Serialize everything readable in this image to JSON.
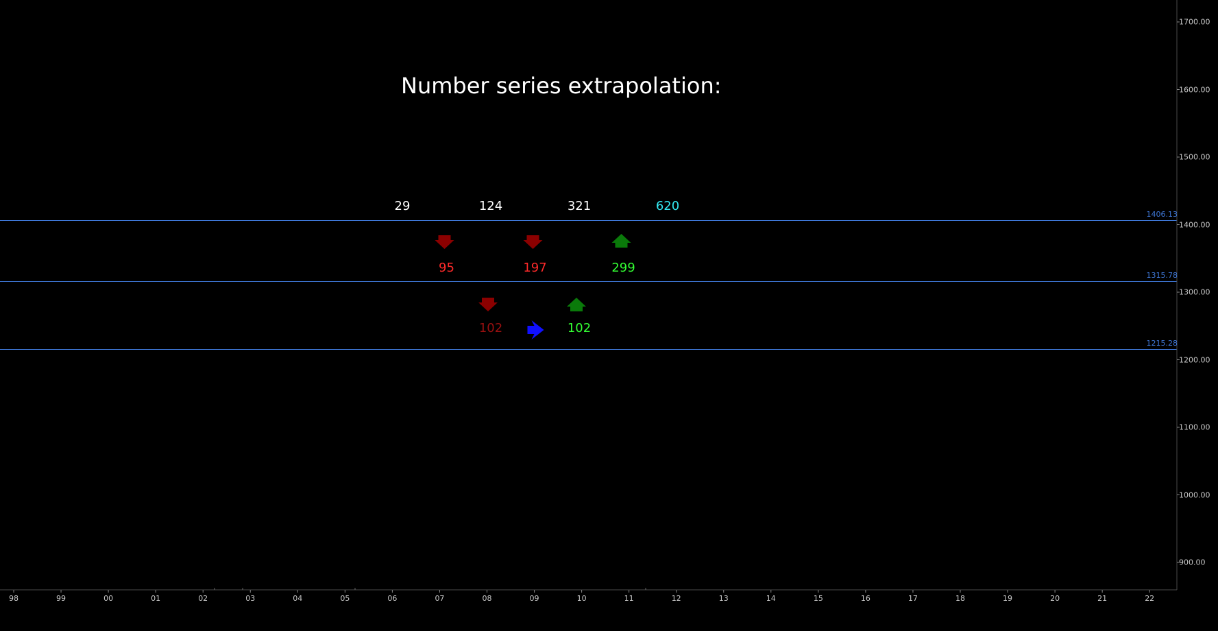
{
  "title": "Number series extrapolation:",
  "colors": {
    "background": "#000000",
    "level_line": "#3f78d8",
    "axis_text": "#c8c8c8",
    "title": "#ffffff",
    "number_white": "#ffffff",
    "number_cyan": "#33e6ef",
    "number_red": "#ff2a2a",
    "number_darkred": "#9a1010",
    "number_green": "#33ff33",
    "arrow_down": "#8b0000",
    "arrow_up": "#0a7a0a",
    "arrow_right": "#1010ff"
  },
  "price_axis": {
    "labels": [
      "1700.00",
      "1600.00",
      "1500.00",
      "1400.00",
      "1300.00",
      "1200.00",
      "1100.00",
      "1000.00",
      "900.00"
    ],
    "values": [
      1700,
      1600,
      1500,
      1400,
      1300,
      1200,
      1100,
      1000,
      900
    ]
  },
  "time_axis": {
    "labels": [
      "98",
      "99",
      "00",
      "01",
      "02",
      "03",
      "04",
      "05",
      "06",
      "07",
      "08",
      "09",
      "10",
      "11",
      "12",
      "13",
      "14",
      "15",
      "16",
      "17",
      "18",
      "19",
      "20",
      "21",
      "22"
    ]
  },
  "levels": [
    {
      "label": "1406.13",
      "value": 1406.13
    },
    {
      "label": "1315.78",
      "value": 1315.78
    },
    {
      "label": "1215.28",
      "value": 1215.28
    }
  ],
  "series_top": [
    {
      "label": "29",
      "slot": 0,
      "color": "number_white"
    },
    {
      "label": "124",
      "slot": 2,
      "color": "number_white"
    },
    {
      "label": "321",
      "slot": 4,
      "color": "number_white"
    },
    {
      "label": "620",
      "slot": 6,
      "color": "number_cyan"
    }
  ],
  "series_diff1": [
    {
      "label": "95",
      "slot": 1,
      "color": "number_red",
      "arrow": "down"
    },
    {
      "label": "197",
      "slot": 3,
      "color": "number_red",
      "arrow": "down"
    },
    {
      "label": "299",
      "slot": 5,
      "color": "number_green",
      "arrow": "up"
    }
  ],
  "series_diff2": [
    {
      "label": "102",
      "slot": 2,
      "color": "number_darkred",
      "arrow": "down"
    },
    {
      "label": "102",
      "slot": 4,
      "color": "number_green",
      "arrow": "up"
    }
  ],
  "center_arrow": {
    "direction": "right",
    "slot": 3
  }
}
